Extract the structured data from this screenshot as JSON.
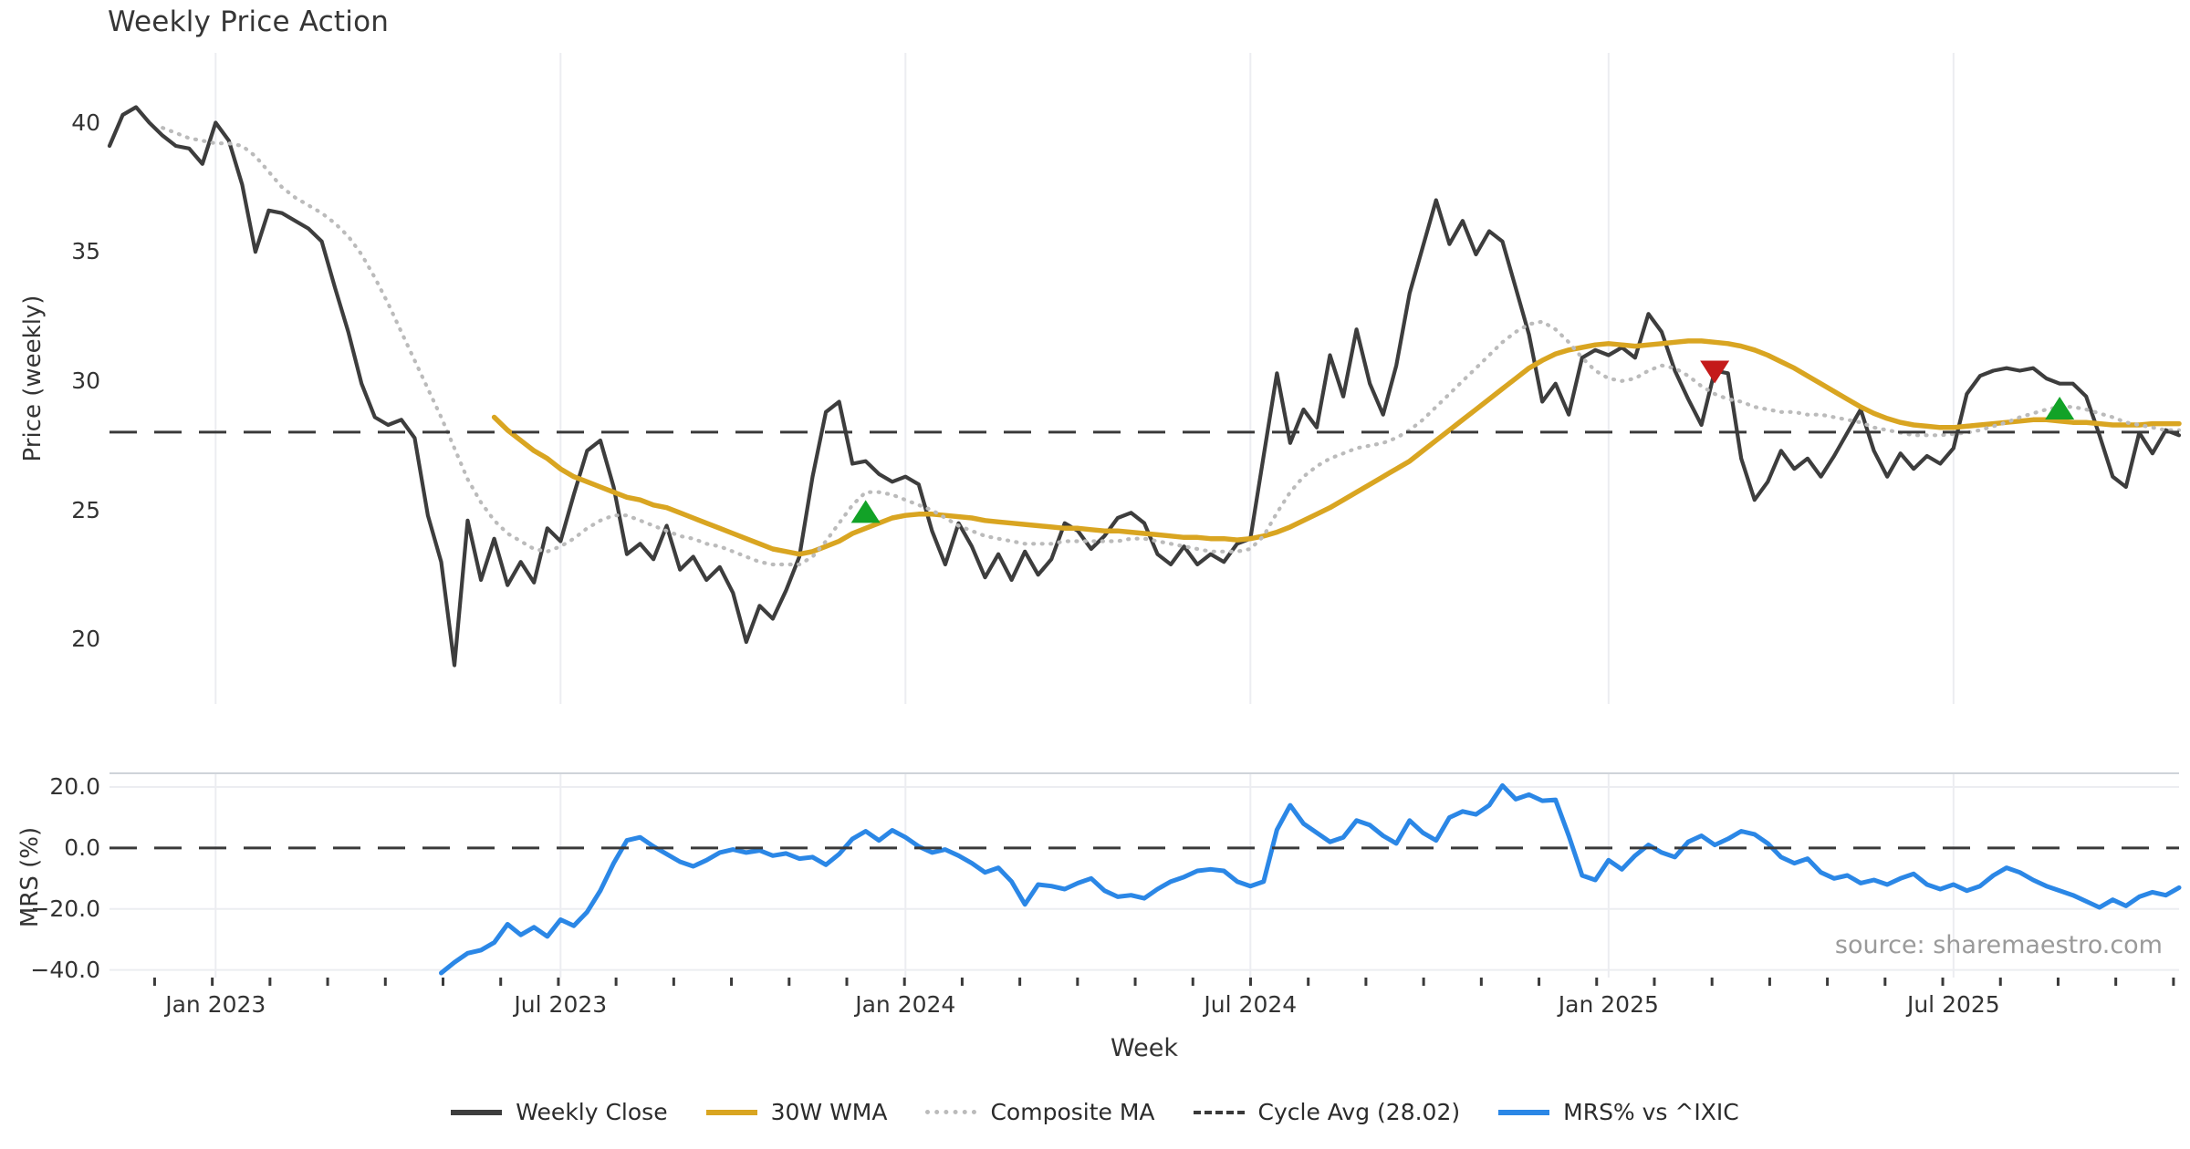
{
  "title": "Weekly Price Action",
  "source_note": "source: sharemaestro.com",
  "colors": {
    "weekly_close": "#3D3D3D",
    "wma_30w": "#D9A521",
    "composite_ma": "#BBBBBB",
    "cycle_avg": "#3A3A3A",
    "mrs": "#2B87E6",
    "marker_up": "#12A227",
    "marker_down": "#C41A1A",
    "grid": "#ECEDF1",
    "spine": "#CFD3D9",
    "tick_mark": "#3A3A3A",
    "tick_text": "#333333",
    "source_text": "#9A9A9A"
  },
  "legend": {
    "items": [
      {
        "label": "Weekly Close",
        "style": "solid",
        "color_key": "weekly_close"
      },
      {
        "label": "30W WMA",
        "style": "solid",
        "color_key": "wma_30w"
      },
      {
        "label": "Composite MA",
        "style": "dotted",
        "color_key": "composite_ma"
      },
      {
        "label": "Cycle Avg (28.02)",
        "style": "dashed",
        "color_key": "cycle_avg"
      },
      {
        "label": "MRS% vs ^IXIC",
        "style": "solid",
        "color_key": "mrs"
      }
    ]
  },
  "chart_data": {
    "type": "line",
    "x_unit": "week-index",
    "n_weeks": 157,
    "x_axis": {
      "label": "Week",
      "ticks": [
        {
          "week": 8,
          "label": "Jan 2023"
        },
        {
          "week": 34,
          "label": "Jul 2023"
        },
        {
          "week": 60,
          "label": "Jan 2024"
        },
        {
          "week": 86,
          "label": "Jul 2024"
        },
        {
          "week": 113,
          "label": "Jan 2025"
        },
        {
          "week": 139,
          "label": "Jul 2025"
        }
      ]
    },
    "panels": [
      {
        "id": "price",
        "ylabel": "Price (weekly)",
        "ylim": [
          17.5,
          42.7
        ],
        "grid": "vertical-only",
        "yticks": [
          {
            "value": 20,
            "label": "20"
          },
          {
            "value": 25,
            "label": "25"
          },
          {
            "value": 30,
            "label": "30"
          },
          {
            "value": 35,
            "label": "35"
          },
          {
            "value": 40,
            "label": "40"
          }
        ]
      },
      {
        "id": "mrs",
        "ylabel": "MRS (%)",
        "ylim": [
          -42.5,
          24.5
        ],
        "grid": "vertical-and-horizontal",
        "yticks": [
          {
            "value": 20,
            "label": "20.0"
          },
          {
            "value": 0,
            "label": "0.0"
          },
          {
            "value": -20,
            "label": "−20.0"
          },
          {
            "value": -40,
            "label": "−40.0"
          }
        ]
      }
    ],
    "series": [
      {
        "name": "Weekly Close",
        "panel": "price",
        "style": "solid",
        "color_key": "weekly_close",
        "width": 4.2,
        "start_week": 0,
        "values": [
          39.1,
          40.3,
          40.6,
          40.0,
          39.5,
          39.1,
          39.0,
          38.4,
          40.0,
          39.3,
          37.6,
          35.0,
          36.6,
          36.5,
          36.2,
          35.9,
          35.4,
          33.6,
          31.9,
          29.9,
          28.6,
          28.3,
          28.5,
          27.8,
          24.8,
          23.0,
          19.0,
          24.6,
          22.3,
          23.9,
          22.1,
          23.0,
          22.2,
          24.3,
          23.8,
          25.6,
          27.3,
          27.7,
          25.9,
          23.3,
          23.7,
          23.1,
          24.4,
          22.7,
          23.2,
          22.3,
          22.8,
          21.8,
          19.9,
          21.3,
          20.8,
          21.9,
          23.2,
          26.3,
          28.8,
          29.2,
          26.8,
          26.9,
          26.4,
          26.1,
          26.3,
          26.0,
          24.2,
          22.9,
          24.5,
          23.6,
          22.4,
          23.3,
          22.3,
          23.4,
          22.5,
          23.1,
          24.5,
          24.2,
          23.5,
          24.0,
          24.7,
          24.9,
          24.5,
          23.3,
          22.9,
          23.6,
          22.9,
          23.3,
          23.0,
          23.7,
          23.9,
          27.1,
          30.3,
          27.6,
          28.9,
          28.2,
          31.0,
          29.4,
          32.0,
          29.9,
          28.7,
          30.6,
          33.4,
          35.2,
          37.0,
          35.3,
          36.2,
          34.9,
          35.8,
          35.4,
          33.6,
          31.8,
          29.2,
          29.9,
          28.7,
          30.9,
          31.2,
          31.0,
          31.3,
          30.9,
          32.6,
          31.9,
          30.4,
          29.3,
          28.3,
          30.4,
          30.3,
          27.0,
          25.4,
          26.1,
          27.3,
          26.6,
          27.0,
          26.3,
          27.1,
          28.0,
          28.9,
          27.3,
          26.3,
          27.2,
          26.6,
          27.1,
          26.8,
          27.4,
          29.5,
          30.2,
          30.4,
          30.5,
          30.4,
          30.5,
          30.1,
          29.9,
          29.9,
          29.4,
          27.9,
          26.3,
          25.9,
          28.0,
          27.2,
          28.1,
          27.9
        ]
      },
      {
        "name": "30W WMA",
        "panel": "price",
        "style": "solid",
        "color_key": "wma_30w",
        "width": 5.5,
        "start_week": 29,
        "values": [
          28.6,
          28.1,
          27.7,
          27.3,
          27.0,
          26.6,
          26.3,
          26.1,
          25.9,
          25.7,
          25.5,
          25.4,
          25.2,
          25.1,
          24.9,
          24.7,
          24.5,
          24.3,
          24.1,
          23.9,
          23.7,
          23.5,
          23.4,
          23.3,
          23.4,
          23.6,
          23.8,
          24.1,
          24.3,
          24.5,
          24.7,
          24.8,
          24.85,
          24.85,
          24.8,
          24.75,
          24.7,
          24.6,
          24.55,
          24.5,
          24.45,
          24.4,
          24.35,
          24.3,
          24.3,
          24.25,
          24.2,
          24.2,
          24.15,
          24.1,
          24.05,
          24.0,
          23.95,
          23.95,
          23.9,
          23.9,
          23.85,
          23.9,
          24.0,
          24.15,
          24.35,
          24.6,
          24.85,
          25.1,
          25.4,
          25.7,
          26.0,
          26.3,
          26.6,
          26.9,
          27.3,
          27.7,
          28.1,
          28.5,
          28.9,
          29.3,
          29.7,
          30.1,
          30.5,
          30.8,
          31.05,
          31.2,
          31.3,
          31.4,
          31.45,
          31.4,
          31.35,
          31.4,
          31.45,
          31.5,
          31.55,
          31.55,
          31.5,
          31.45,
          31.35,
          31.2,
          31.0,
          30.75,
          30.5,
          30.2,
          29.9,
          29.6,
          29.3,
          29.0,
          28.75,
          28.55,
          28.4,
          28.3,
          28.25,
          28.2,
          28.2,
          28.25,
          28.3,
          28.35,
          28.4,
          28.45,
          28.5,
          28.5,
          28.45,
          28.4,
          28.4,
          28.35,
          28.3,
          28.3,
          28.3,
          28.35,
          28.35,
          28.35
        ]
      },
      {
        "name": "Composite MA",
        "panel": "price",
        "style": "dotted",
        "color_key": "composite_ma",
        "width": 4.2,
        "start_week": 4,
        "values": [
          39.8,
          39.6,
          39.4,
          39.3,
          39.2,
          39.2,
          39.1,
          38.7,
          38.1,
          37.5,
          37.1,
          36.8,
          36.5,
          36.1,
          35.6,
          34.9,
          34.0,
          33.0,
          31.9,
          30.8,
          29.7,
          28.6,
          27.4,
          26.2,
          25.3,
          24.6,
          24.1,
          23.8,
          23.5,
          23.4,
          23.6,
          23.9,
          24.3,
          24.6,
          24.8,
          24.8,
          24.6,
          24.4,
          24.2,
          24.0,
          23.9,
          23.7,
          23.6,
          23.4,
          23.2,
          23.0,
          22.9,
          22.9,
          22.9,
          23.2,
          23.8,
          24.5,
          25.2,
          25.7,
          25.7,
          25.6,
          25.4,
          25.2,
          25.0,
          24.7,
          24.4,
          24.2,
          24.0,
          23.9,
          23.8,
          23.7,
          23.7,
          23.7,
          23.8,
          23.8,
          23.8,
          23.8,
          23.8,
          23.9,
          23.9,
          23.8,
          23.7,
          23.6,
          23.5,
          23.4,
          23.4,
          23.4,
          23.5,
          24.0,
          24.9,
          25.7,
          26.3,
          26.7,
          27.0,
          27.2,
          27.4,
          27.5,
          27.6,
          27.8,
          28.1,
          28.5,
          29.0,
          29.5,
          30.0,
          30.5,
          31.0,
          31.5,
          31.9,
          32.2,
          32.3,
          32.0,
          31.5,
          30.9,
          30.4,
          30.1,
          30.0,
          30.1,
          30.4,
          30.6,
          30.5,
          30.2,
          29.8,
          29.5,
          29.3,
          29.2,
          29.0,
          28.9,
          28.8,
          28.8,
          28.7,
          28.7,
          28.6,
          28.5,
          28.4,
          28.2,
          28.1,
          28.0,
          27.9,
          27.9,
          27.9,
          27.95,
          28.0,
          28.1,
          28.25,
          28.4,
          28.6,
          28.75,
          28.9,
          29.0,
          29.0,
          28.9,
          28.75,
          28.6,
          28.4,
          28.3,
          28.2,
          28.1,
          28.1
        ]
      },
      {
        "name": "Cycle Avg",
        "panel": "price",
        "style": "dashed-horizontal",
        "color_key": "cycle_avg",
        "width": 3,
        "value": 28.02
      },
      {
        "name": "MRS% vs ^IXIC",
        "panel": "mrs",
        "style": "solid",
        "color_key": "mrs",
        "width": 5,
        "start_week": 25,
        "values": [
          -41,
          -37.5,
          -34.5,
          -33.5,
          -31,
          -25,
          -28.5,
          -26,
          -29,
          -23.5,
          -25.5,
          -21,
          -14,
          -5,
          2.5,
          3.5,
          0.5,
          -2,
          -4.5,
          -6,
          -4,
          -1.5,
          -0.5,
          -1.5,
          -0.8,
          -2.5,
          -1.8,
          -3.5,
          -3,
          -5.5,
          -2,
          3,
          5.5,
          2.5,
          5.8,
          3.5,
          0.5,
          -1.5,
          -0.5,
          -2.5,
          -5,
          -8,
          -6.5,
          -11,
          -18.5,
          -12,
          -12.5,
          -13.5,
          -11.5,
          -10,
          -14,
          -16,
          -15.5,
          -16.5,
          -13.5,
          -11,
          -9.5,
          -7.5,
          -7,
          -7.5,
          -11,
          -12.5,
          -11,
          6,
          14,
          8,
          5,
          2,
          3.5,
          9,
          7.5,
          4,
          1.5,
          9,
          5,
          2.5,
          10,
          12,
          11,
          14,
          20.5,
          16,
          17.5,
          15.5,
          15.8,
          4,
          -9,
          -10.5,
          -4,
          -7,
          -2.5,
          1,
          -1.5,
          -3,
          2,
          4,
          1,
          3,
          5.5,
          4.5,
          1.5,
          -3,
          -5,
          -3.5,
          -8,
          -10,
          -9,
          -11.5,
          -10.5,
          -12,
          -10,
          -8.5,
          -12,
          -13.5,
          -12,
          -14,
          -12.5,
          -9,
          -6.5,
          -8,
          -10.5,
          -12.5,
          -14,
          -15.5,
          -17.5,
          -19.5,
          -17,
          -19,
          -16,
          -14.5,
          -15.5,
          -13
        ]
      },
      {
        "name": "Zero Line",
        "panel": "mrs",
        "style": "dashed-horizontal",
        "color_key": "cycle_avg",
        "width": 3,
        "value": 0.0
      }
    ],
    "markers": [
      {
        "shape": "triangle-up",
        "week": 57,
        "value": 24.9,
        "color_key": "marker_up"
      },
      {
        "shape": "triangle-down",
        "week": 121,
        "value": 30.4,
        "color_key": "marker_down"
      },
      {
        "shape": "triangle-up",
        "week": 147,
        "value": 28.9,
        "color_key": "marker_up"
      }
    ]
  }
}
